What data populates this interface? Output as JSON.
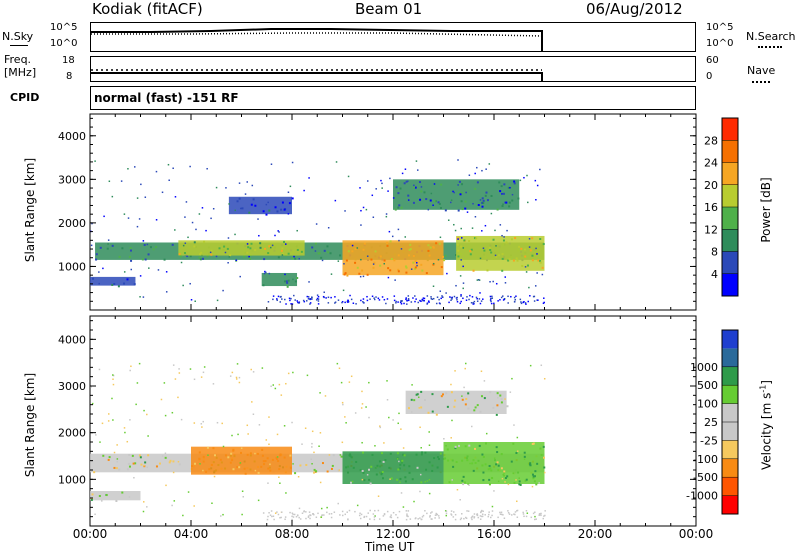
{
  "header": {
    "station": "Kodiak (fitACF)",
    "beam": "Beam 01",
    "date": "06/Aug/2012"
  },
  "top_panels": {
    "nsky_label": "N.Sky",
    "nsearch_label": "N.Search",
    "nsky_ticks": [
      "10^5",
      "10^0"
    ],
    "nsearch_ticks": [
      "10^5",
      "10^0"
    ],
    "freq_label_1": "Freq.",
    "freq_label_2": "[MHz]",
    "freq_ticks": [
      "18",
      "8"
    ],
    "nave_label": "Nave",
    "nave_ticks": [
      "60",
      "0"
    ],
    "cpid_label": "CPID",
    "cpid_text": "normal (fast) -151 RF"
  },
  "colors": {
    "power_scale": [
      "#0000ff",
      "#2b49b8",
      "#2f8c5b",
      "#4fb04a",
      "#b8cc30",
      "#f6a623",
      "#f57000",
      "#ff2a00"
    ],
    "velocity_scale": [
      "#ff0000",
      "#ff5500",
      "#f88b14",
      "#f5c95e",
      "#c8c8c8",
      "#c8c8c8",
      "#66cc33",
      "#2f9b4a",
      "#2a6a9a",
      "#1f3fcf"
    ]
  },
  "chart_data": [
    {
      "type": "heatmap",
      "name": "power",
      "ylabel": "Slant Range [km]",
      "yticks": [
        "1000",
        "2000",
        "3000",
        "4000"
      ],
      "ylim": [
        0,
        4500
      ],
      "colorbar_label": "Power [dB]",
      "colorbar_ticks": [
        "4",
        "8",
        "12",
        "16",
        "20",
        "24",
        "28"
      ],
      "colorbar_range": [
        0,
        32
      ],
      "regions": [
        {
          "t": [
            0.2,
            18.0
          ],
          "r": [
            1150,
            1550
          ],
          "level": 10
        },
        {
          "t": [
            0.0,
            1.8
          ],
          "r": [
            560,
            760
          ],
          "level": 6
        },
        {
          "t": [
            3.5,
            8.5
          ],
          "r": [
            1250,
            1600
          ],
          "level": 16
        },
        {
          "t": [
            5.5,
            8.0
          ],
          "r": [
            2200,
            2600
          ],
          "level": 6
        },
        {
          "t": [
            6.8,
            8.2
          ],
          "r": [
            550,
            850
          ],
          "level": 10
        },
        {
          "t": [
            10.0,
            14.0
          ],
          "r": [
            800,
            1600
          ],
          "level": 22
        },
        {
          "t": [
            14.5,
            18.0
          ],
          "r": [
            900,
            1700
          ],
          "level": 18
        },
        {
          "t": [
            12.0,
            17.0
          ],
          "r": [
            2300,
            3000
          ],
          "level": 8
        }
      ]
    },
    {
      "type": "heatmap",
      "name": "velocity",
      "ylabel": "Slant Range [km]",
      "yticks": [
        "1000",
        "2000",
        "3000",
        "4000"
      ],
      "ylim": [
        0,
        4500
      ],
      "colorbar_label": "Velocity [m s^-1]",
      "colorbar_ticks": [
        "-1000",
        "-500",
        "-100",
        "-25",
        "25",
        "100",
        "500",
        "1000"
      ],
      "regions": [
        {
          "t": [
            0.0,
            18.0
          ],
          "r": [
            1150,
            1550
          ],
          "velocity": 0
        },
        {
          "t": [
            0.0,
            2.0
          ],
          "r": [
            550,
            750
          ],
          "velocity": 0
        },
        {
          "t": [
            4.0,
            8.0
          ],
          "r": [
            1100,
            1700
          ],
          "velocity": -200
        },
        {
          "t": [
            10.0,
            14.0
          ],
          "r": [
            900,
            1600
          ],
          "velocity": 150
        },
        {
          "t": [
            14.0,
            18.0
          ],
          "r": [
            900,
            1800
          ],
          "velocity": 100
        },
        {
          "t": [
            12.5,
            16.5
          ],
          "r": [
            2400,
            2900
          ],
          "velocity": 0
        }
      ]
    }
  ],
  "xaxis": {
    "label": "Time UT",
    "ticks": [
      "00:00",
      "04:00",
      "08:00",
      "12:00",
      "16:00",
      "20:00",
      "00:00"
    ],
    "range_hours": [
      0,
      24
    ]
  }
}
